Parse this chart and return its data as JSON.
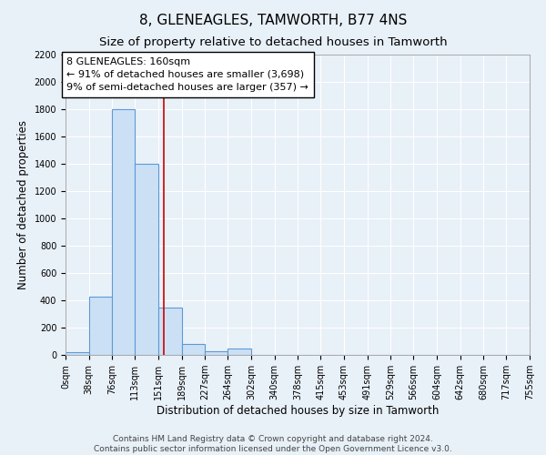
{
  "title": "8, GLENEAGLES, TAMWORTH, B77 4NS",
  "subtitle": "Size of property relative to detached houses in Tamworth",
  "xlabel": "Distribution of detached houses by size in Tamworth",
  "ylabel": "Number of detached properties",
  "bin_edges": [
    0,
    38,
    76,
    113,
    151,
    189,
    227,
    264,
    302,
    340,
    378,
    415,
    453,
    491,
    529,
    566,
    604,
    642,
    680,
    717,
    755
  ],
  "bar_heights": [
    20,
    430,
    1800,
    1400,
    350,
    80,
    25,
    50,
    0,
    0,
    0,
    0,
    0,
    0,
    0,
    0,
    0,
    0,
    0,
    0
  ],
  "property_size": 160,
  "bar_facecolor": "#cce0f5",
  "bar_edgecolor": "#5b9bd5",
  "vline_color": "#cc0000",
  "annotation_text": "8 GLENEAGLES: 160sqm\n← 91% of detached houses are smaller (3,698)\n9% of semi-detached houses are larger (357) →",
  "ylim": [
    0,
    2200
  ],
  "yticks": [
    0,
    200,
    400,
    600,
    800,
    1000,
    1200,
    1400,
    1600,
    1800,
    2000,
    2200
  ],
  "xtick_labels": [
    "0sqm",
    "38sqm",
    "76sqm",
    "113sqm",
    "151sqm",
    "189sqm",
    "227sqm",
    "264sqm",
    "302sqm",
    "340sqm",
    "378sqm",
    "415sqm",
    "453sqm",
    "491sqm",
    "529sqm",
    "566sqm",
    "604sqm",
    "642sqm",
    "680sqm",
    "717sqm",
    "755sqm"
  ],
  "footer_line1": "Contains HM Land Registry data © Crown copyright and database right 2024.",
  "footer_line2": "Contains public sector information licensed under the Open Government Licence v3.0.",
  "bg_color": "#e8f0f8",
  "plot_bg_color": "#e8f0f8",
  "grid_color": "#ffffff",
  "title_fontsize": 11,
  "subtitle_fontsize": 9.5,
  "axis_label_fontsize": 8.5,
  "tick_fontsize": 7,
  "annotation_fontsize": 8,
  "footer_fontsize": 6.5
}
